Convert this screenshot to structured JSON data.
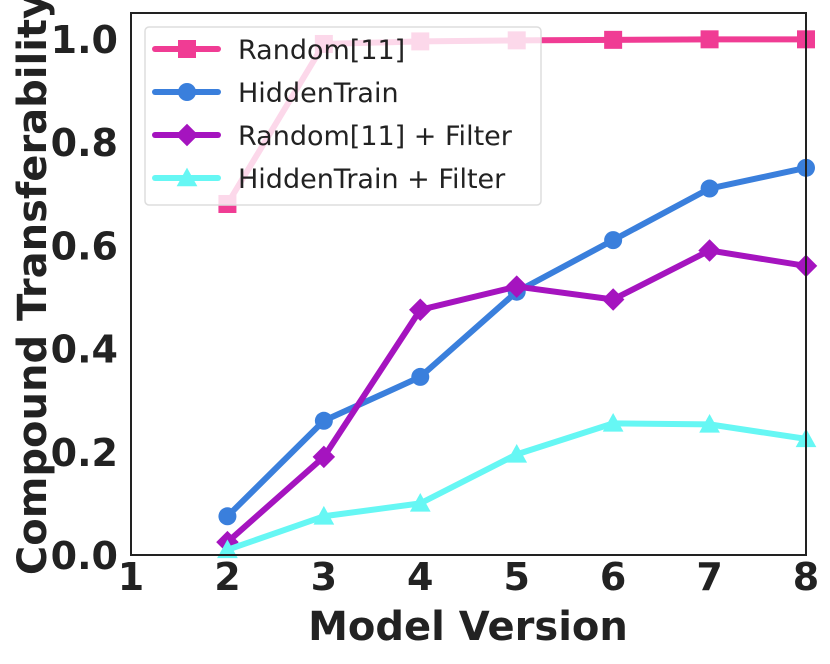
{
  "chart_data": {
    "type": "line",
    "title": "",
    "xlabel": "Model Version",
    "ylabel": "Compound Transferability",
    "xlim": [
      1,
      8
    ],
    "ylim": [
      0.0,
      1.05
    ],
    "x_ticks": [
      "1",
      "2",
      "3",
      "4",
      "5",
      "6",
      "7",
      "8"
    ],
    "y_ticks": [
      "0.0",
      "0.2",
      "0.4",
      "0.6",
      "0.8",
      "1.0"
    ],
    "legend_position": "top-left",
    "series": [
      {
        "name": "Random[11]",
        "color": "#f03c94",
        "marker": "square",
        "x": [
          2,
          3,
          4,
          5,
          6,
          7,
          8
        ],
        "values": [
          0.68,
          0.99,
          0.995,
          0.997,
          0.998,
          0.999,
          0.999
        ]
      },
      {
        "name": "HiddenTrain",
        "color": "#3a7fdc",
        "marker": "circle",
        "x": [
          2,
          3,
          4,
          5,
          6,
          7,
          8
        ],
        "values": [
          0.075,
          0.26,
          0.345,
          0.51,
          0.61,
          0.71,
          0.75
        ]
      },
      {
        "name": "Random[11] + Filter",
        "color": "#a514bf",
        "marker": "diamond",
        "x": [
          2,
          3,
          4,
          5,
          6,
          7,
          8
        ],
        "values": [
          0.025,
          0.19,
          0.475,
          0.52,
          0.495,
          0.59,
          0.56
        ]
      },
      {
        "name": "HiddenTrain + Filter",
        "color": "#66f7f4",
        "marker": "triangle",
        "x": [
          2,
          3,
          4,
          5,
          6,
          7,
          8
        ],
        "values": [
          0.01,
          0.075,
          0.1,
          0.195,
          0.255,
          0.253,
          0.225
        ]
      }
    ]
  }
}
